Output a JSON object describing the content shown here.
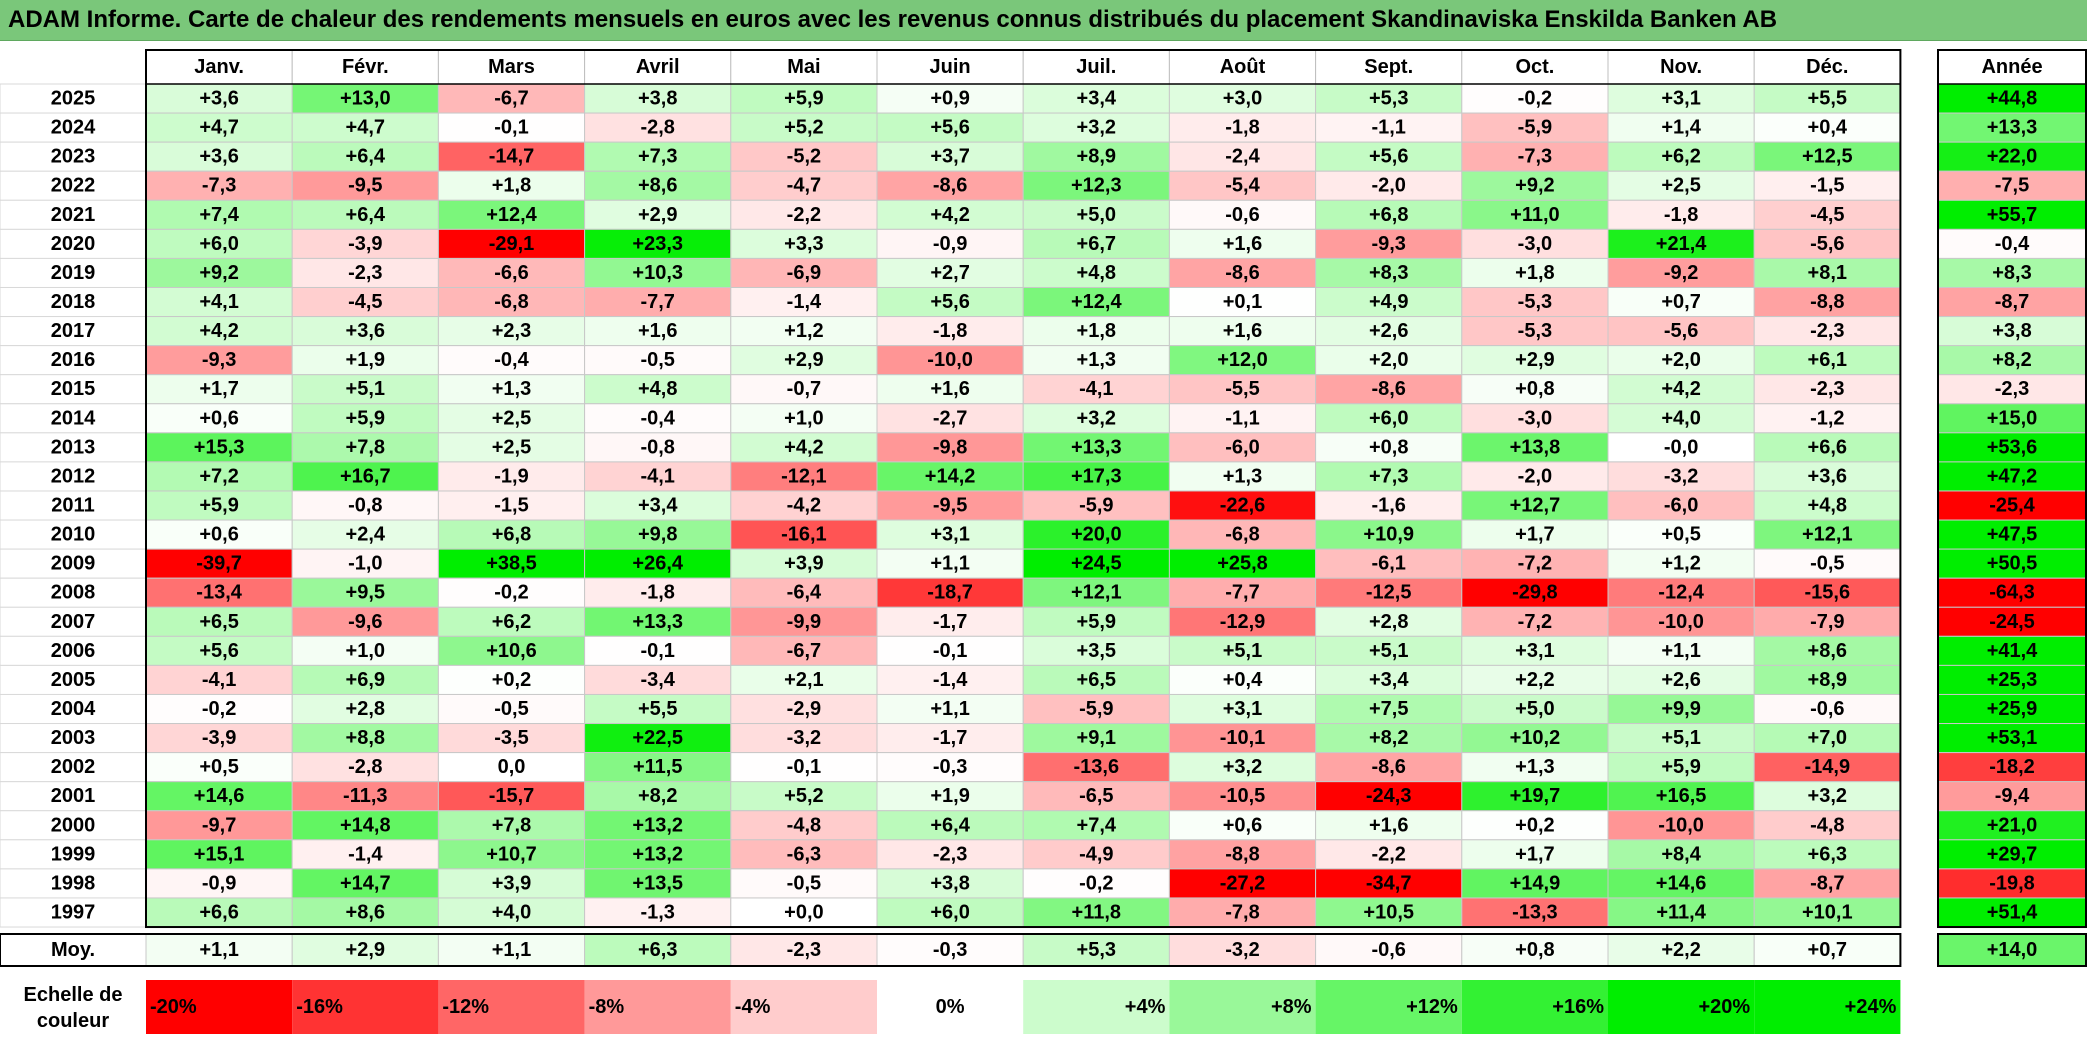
{
  "title": "ADAM Informe. Carte de chaleur des rendements mensuels en euros avec les revenus connus distribués du placement Skandinaviska Enskilda Banken AB",
  "chart_data": {
    "type": "heatmap",
    "months": [
      "Janv.",
      "Févr.",
      "Mars",
      "Avril",
      "Mai",
      "Juin",
      "Juil.",
      "Août",
      "Sept.",
      "Oct.",
      "Nov.",
      "Déc."
    ],
    "annual_header": "Année",
    "years": [
      "2025",
      "2024",
      "2023",
      "2022",
      "2021",
      "2020",
      "2019",
      "2018",
      "2017",
      "2016",
      "2015",
      "2014",
      "2013",
      "2012",
      "2011",
      "2010",
      "2009",
      "2008",
      "2007",
      "2006",
      "2005",
      "2004",
      "2003",
      "2002",
      "2001",
      "2000",
      "1999",
      "1998",
      "1997"
    ],
    "values": [
      [
        "+3,6",
        "+13,0",
        "-6,7",
        "+3,8",
        "+5,9",
        "+0,9",
        "+3,4",
        "+3,0",
        "+5,3",
        "-0,2",
        "+3,1",
        "+5,5"
      ],
      [
        "+4,7",
        "+4,7",
        "-0,1",
        "-2,8",
        "+5,2",
        "+5,6",
        "+3,2",
        "-1,8",
        "-1,1",
        "-5,9",
        "+1,4",
        "+0,4"
      ],
      [
        "+3,6",
        "+6,4",
        "-14,7",
        "+7,3",
        "-5,2",
        "+3,7",
        "+8,9",
        "-2,4",
        "+5,6",
        "-7,3",
        "+6,2",
        "+12,5"
      ],
      [
        "-7,3",
        "-9,5",
        "+1,8",
        "+8,6",
        "-4,7",
        "-8,6",
        "+12,3",
        "-5,4",
        "-2,0",
        "+9,2",
        "+2,5",
        "-1,5"
      ],
      [
        "+7,4",
        "+6,4",
        "+12,4",
        "+2,9",
        "-2,2",
        "+4,2",
        "+5,0",
        "-0,6",
        "+6,8",
        "+11,0",
        "-1,8",
        "-4,5"
      ],
      [
        "+6,0",
        "-3,9",
        "-29,1",
        "+23,3",
        "+3,3",
        "-0,9",
        "+6,7",
        "+1,6",
        "-9,3",
        "-3,0",
        "+21,4",
        "-5,6"
      ],
      [
        "+9,2",
        "-2,3",
        "-6,6",
        "+10,3",
        "-6,9",
        "+2,7",
        "+4,8",
        "-8,6",
        "+8,3",
        "+1,8",
        "-9,2",
        "+8,1"
      ],
      [
        "+4,1",
        "-4,5",
        "-6,8",
        "-7,7",
        "-1,4",
        "+5,6",
        "+12,4",
        "+0,1",
        "+4,9",
        "-5,3",
        "+0,7",
        "-8,8"
      ],
      [
        "+4,2",
        "+3,6",
        "+2,3",
        "+1,6",
        "+1,2",
        "-1,8",
        "+1,8",
        "+1,6",
        "+2,6",
        "-5,3",
        "-5,6",
        "-2,3"
      ],
      [
        "-9,3",
        "+1,9",
        "-0,4",
        "-0,5",
        "+2,9",
        "-10,0",
        "+1,3",
        "+12,0",
        "+2,0",
        "+2,9",
        "+2,0",
        "+6,1"
      ],
      [
        "+1,7",
        "+5,1",
        "+1,3",
        "+4,8",
        "-0,7",
        "+1,6",
        "-4,1",
        "-5,5",
        "-8,6",
        "+0,8",
        "+4,2",
        "-2,3"
      ],
      [
        "+0,6",
        "+5,9",
        "+2,5",
        "-0,4",
        "+1,0",
        "-2,7",
        "+3,2",
        "-1,1",
        "+6,0",
        "-3,0",
        "+4,0",
        "-1,2"
      ],
      [
        "+15,3",
        "+7,8",
        "+2,5",
        "-0,8",
        "+4,2",
        "-9,8",
        "+13,3",
        "-6,0",
        "+0,8",
        "+13,8",
        "-0,0",
        "+6,6"
      ],
      [
        "+7,2",
        "+16,7",
        "-1,9",
        "-4,1",
        "-12,1",
        "+14,2",
        "+17,3",
        "+1,3",
        "+7,3",
        "-2,0",
        "-3,2",
        "+3,6"
      ],
      [
        "+5,9",
        "-0,8",
        "-1,5",
        "+3,4",
        "-4,2",
        "-9,5",
        "-5,9",
        "-22,6",
        "-1,6",
        "+12,7",
        "-6,0",
        "+4,8"
      ],
      [
        "+0,6",
        "+2,4",
        "+6,8",
        "+9,8",
        "-16,1",
        "+3,1",
        "+20,0",
        "-6,8",
        "+10,9",
        "+1,7",
        "+0,5",
        "+12,1"
      ],
      [
        "-39,7",
        "-1,0",
        "+38,5",
        "+26,4",
        "+3,9",
        "+1,1",
        "+24,5",
        "+25,8",
        "-6,1",
        "-7,2",
        "+1,2",
        "-0,5"
      ],
      [
        "-13,4",
        "+9,5",
        "-0,2",
        "-1,8",
        "-6,4",
        "-18,7",
        "+12,1",
        "-7,7",
        "-12,5",
        "-29,8",
        "-12,4",
        "-15,6"
      ],
      [
        "+6,5",
        "-9,6",
        "+6,2",
        "+13,3",
        "-9,9",
        "-1,7",
        "+5,9",
        "-12,9",
        "+2,8",
        "-7,2",
        "-10,0",
        "-7,9"
      ],
      [
        "+5,6",
        "+1,0",
        "+10,6",
        "-0,1",
        "-6,7",
        "-0,1",
        "+3,5",
        "+5,1",
        "+5,1",
        "+3,1",
        "+1,1",
        "+8,6"
      ],
      [
        "-4,1",
        "+6,9",
        "+0,2",
        "-3,4",
        "+2,1",
        "-1,4",
        "+6,5",
        "+0,4",
        "+3,4",
        "+2,2",
        "+2,6",
        "+8,9"
      ],
      [
        "-0,2",
        "+2,8",
        "-0,5",
        "+5,5",
        "-2,9",
        "+1,1",
        "-5,9",
        "+3,1",
        "+7,5",
        "+5,0",
        "+9,9",
        "-0,6"
      ],
      [
        "-3,9",
        "+8,8",
        "-3,5",
        "+22,5",
        "-3,2",
        "-1,7",
        "+9,1",
        "-10,1",
        "+8,2",
        "+10,2",
        "+5,1",
        "+7,0"
      ],
      [
        "+0,5",
        "-2,8",
        "0,0",
        "+11,5",
        "-0,1",
        "-0,3",
        "-13,6",
        "+3,2",
        "-8,6",
        "+1,3",
        "+5,9",
        "-14,9"
      ],
      [
        "+14,6",
        "-11,3",
        "-15,7",
        "+8,2",
        "+5,2",
        "+1,9",
        "-6,5",
        "-10,5",
        "-24,3",
        "+19,7",
        "+16,5",
        "+3,2"
      ],
      [
        "-9,7",
        "+14,8",
        "+7,8",
        "+13,2",
        "-4,8",
        "+6,4",
        "+7,4",
        "+0,6",
        "+1,6",
        "+0,2",
        "-10,0",
        "-4,8"
      ],
      [
        "+15,1",
        "-1,4",
        "+10,7",
        "+13,2",
        "-6,3",
        "-2,3",
        "-4,9",
        "-8,8",
        "-2,2",
        "+1,7",
        "+8,4",
        "+6,3"
      ],
      [
        "-0,9",
        "+14,7",
        "+3,9",
        "+13,5",
        "-0,5",
        "+3,8",
        "-0,2",
        "-27,2",
        "-34,7",
        "+14,9",
        "+14,6",
        "-8,7"
      ],
      [
        "+6,6",
        "+8,6",
        "+4,0",
        "-1,3",
        "+0,0",
        "+6,0",
        "+11,8",
        "-7,8",
        "+10,5",
        "-13,3",
        "+11,4",
        "+10,1"
      ]
    ],
    "annual": [
      "+44,8",
      "+13,3",
      "+22,0",
      "-7,5",
      "+55,7",
      "-0,4",
      "+8,3",
      "-8,7",
      "+3,8",
      "+8,2",
      "-2,3",
      "+15,0",
      "+53,6",
      "+47,2",
      "-25,4",
      "+47,5",
      "+50,5",
      "-64,3",
      "-24,5",
      "+41,4",
      "+25,3",
      "+25,9",
      "+53,1",
      "-18,2",
      "-9,4",
      "+21,0",
      "+29,7",
      "-19,8",
      "+51,4"
    ],
    "average": {
      "label": "Moy.",
      "values": [
        "+1,1",
        "+2,9",
        "+1,1",
        "+6,3",
        "-2,3",
        "-0,3",
        "+5,3",
        "-3,2",
        "-0,6",
        "+0,8",
        "+2,2",
        "+0,7"
      ],
      "annual": "+14,0"
    },
    "scale": {
      "label_line1": "Echelle de",
      "label_line2": "couleur",
      "steps": [
        "-20%",
        "-16%",
        "-12%",
        "-8%",
        "-4%",
        "0%",
        "+4%",
        "+8%",
        "+12%",
        "+16%",
        "+20%",
        "+24%"
      ]
    },
    "colors": {
      "positive_max": "#00ee00",
      "negative_max": "#ff0000",
      "neutral": "#ffffff",
      "title_bar": "#7ac77a"
    }
  }
}
